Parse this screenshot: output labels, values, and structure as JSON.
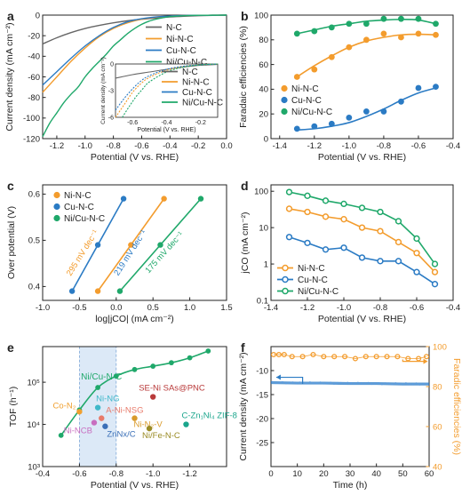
{
  "colors": {
    "NiNC": "#f39c2d",
    "CuNC": "#2b7bc4",
    "NiCuNC": "#1fa86a",
    "NC": "#666666",
    "SE": "#b93a3a",
    "CZn": "#1aa58c",
    "NiFe": "#9a8b25",
    "ANi": "#e87a6a",
    "Zn": "#3a6fb7",
    "NiNCB": "#c86fc0",
    "NiNG": "#3fb8c9",
    "CoN": "#f0a030",
    "NiN2V": "#d99a2a",
    "shade": "#dce9f7"
  },
  "chart_data": [
    {
      "panel": "a",
      "type": "line",
      "xlabel": "Potential (V vs. RHE)",
      "ylabel": "Current density (mA cm⁻²)",
      "xlim": [
        -1.3,
        0.0
      ],
      "ylim": [
        -120,
        0
      ],
      "xticks": [
        -1.2,
        -1.0,
        -0.8,
        -0.6,
        -0.4,
        -0.2,
        0.0
      ],
      "xtick_labels": [
        "-1.2",
        "-1.0",
        "-0.8",
        "-0.6",
        "-0.4",
        "-0.2",
        "0.0"
      ],
      "yticks": [
        -120,
        -100,
        -80,
        -60,
        -40,
        -20,
        0
      ],
      "ytick_labels": [
        "-120",
        "-100",
        "-80",
        "-60",
        "-40",
        "-20",
        "0"
      ],
      "legend": [
        "N-C",
        "Ni-N-C",
        "Cu-N-C",
        "Ni/Cu-N-C"
      ],
      "series": [
        {
          "name": "N-C",
          "x": [
            -1.3,
            -1.2,
            -1.1,
            -1.0,
            -0.9,
            -0.8,
            -0.7,
            -0.6,
            -0.5,
            -0.4,
            -0.3,
            -0.2,
            -0.1,
            0.0
          ],
          "y": [
            -28,
            -22,
            -17,
            -13,
            -10,
            -7.5,
            -5.5,
            -4,
            -2.8,
            -1.8,
            -1.1,
            -0.6,
            -0.3,
            0
          ]
        },
        {
          "name": "Ni-N-C",
          "x": [
            -1.3,
            -1.2,
            -1.1,
            -1.0,
            -0.9,
            -0.8,
            -0.7,
            -0.6,
            -0.5,
            -0.4,
            -0.3,
            -0.2,
            -0.1,
            0.0
          ],
          "y": [
            -75,
            -60,
            -45,
            -32,
            -21,
            -13,
            -7.5,
            -4,
            -2,
            -1,
            -0.5,
            -0.2,
            -0.1,
            0
          ]
        },
        {
          "name": "Cu-N-C",
          "x": [
            -1.3,
            -1.2,
            -1.1,
            -1.0,
            -0.9,
            -0.8,
            -0.7,
            -0.6,
            -0.5,
            -0.4,
            -0.3,
            -0.2,
            -0.1,
            0.0
          ],
          "y": [
            -68,
            -55,
            -42,
            -30,
            -20,
            -12,
            -6.5,
            -3.5,
            -1.8,
            -0.9,
            -0.4,
            -0.2,
            -0.1,
            0
          ]
        },
        {
          "name": "Ni/Cu-N-C",
          "x": [
            -1.3,
            -1.25,
            -1.2,
            -1.15,
            -1.1,
            -1.05,
            -1.0,
            -0.95,
            -0.9,
            -0.85,
            -0.8,
            -0.75,
            -0.7,
            -0.65,
            -0.6,
            -0.55,
            -0.5,
            -0.45,
            -0.4,
            -0.3,
            -0.2,
            -0.1,
            0.0
          ],
          "y": [
            -118,
            -105,
            -95,
            -85,
            -77,
            -70,
            -60,
            -52,
            -45,
            -38,
            -30,
            -24,
            -18,
            -13,
            -9,
            -6,
            -4,
            -2.5,
            -1.5,
            -0.6,
            -0.2,
            -0.1,
            0
          ]
        }
      ],
      "inset": {
        "xlabel": "Potential (V vs. RHE)",
        "ylabel": "Current density (mA cm⁻²)",
        "xlim": [
          -0.7,
          -0.1
        ],
        "ylim": [
          -6,
          0
        ],
        "xtick_labels": [
          "-0.6",
          "-0.4",
          "-0.2"
        ],
        "ytick_labels": [
          "-6",
          "-3",
          "0"
        ],
        "series": [
          {
            "name": "N-C",
            "x": [
              -0.7,
              -0.6,
              -0.5,
              -0.4,
              -0.3,
              -0.2,
              -0.1
            ],
            "y": [
              -1.6,
              -1.2,
              -0.9,
              -0.6,
              -0.35,
              -0.15,
              -0.05
            ]
          },
          {
            "name": "Ni-N-C",
            "x": [
              -0.7,
              -0.65,
              -0.6,
              -0.55,
              -0.5,
              -0.4,
              -0.3,
              -0.2,
              -0.1
            ],
            "y": [
              -6,
              -4.6,
              -3.2,
              -2.2,
              -1.5,
              -0.7,
              -0.3,
              -0.1,
              0
            ]
          },
          {
            "name": "Cu-N-C",
            "x": [
              -0.7,
              -0.65,
              -0.6,
              -0.55,
              -0.5,
              -0.4,
              -0.3,
              -0.2,
              -0.1
            ],
            "y": [
              -5.2,
              -3.9,
              -2.8,
              -1.9,
              -1.3,
              -0.6,
              -0.25,
              -0.1,
              0
            ]
          },
          {
            "name": "Ni/Cu-N-C",
            "x": [
              -0.66,
              -0.62,
              -0.58,
              -0.54,
              -0.5,
              -0.4,
              -0.3,
              -0.2,
              -0.1
            ],
            "y": [
              -6,
              -4.8,
              -3.7,
              -2.8,
              -2.0,
              -0.9,
              -0.35,
              -0.1,
              0
            ]
          }
        ]
      }
    },
    {
      "panel": "b",
      "type": "scatter",
      "xlabel": "Potential (V vs. RHE)",
      "ylabel": "Faradaic efficiencies (%)",
      "xlim": [
        -1.45,
        -0.4
      ],
      "ylim": [
        0,
        100
      ],
      "xticks": [
        -1.4,
        -1.2,
        -1.0,
        -0.8,
        -0.6,
        -0.4
      ],
      "xtick_labels": [
        "-1.4",
        "-1.2",
        "-1.0",
        "-0.8",
        "-0.6",
        "-0.4"
      ],
      "yticks": [
        0,
        20,
        40,
        60,
        80,
        100
      ],
      "ytick_labels": [
        "0",
        "20",
        "40",
        "60",
        "80",
        "100"
      ],
      "legend": [
        "Ni-N-C",
        "Cu-N-C",
        "Ni/Cu-N-C"
      ],
      "series": [
        {
          "name": "Ni-N-C",
          "x": [
            -1.3,
            -1.2,
            -1.1,
            -1.0,
            -0.9,
            -0.8,
            -0.7,
            -0.6,
            -0.5
          ],
          "y": [
            50,
            56,
            66,
            74,
            80,
            85,
            82,
            85,
            84
          ],
          "fit": [
            50,
            59,
            67,
            74,
            79,
            82,
            84,
            84.5,
            84
          ]
        },
        {
          "name": "Cu-N-C",
          "x": [
            -1.3,
            -1.2,
            -1.1,
            -1.0,
            -0.9,
            -0.8,
            -0.7,
            -0.6,
            -0.5
          ],
          "y": [
            8,
            10,
            12,
            17,
            22,
            22,
            30,
            41,
            42
          ],
          "fit": [
            7,
            8,
            10,
            13,
            18,
            24,
            31,
            37,
            41
          ]
        },
        {
          "name": "Ni/Cu-N-C",
          "x": [
            -1.3,
            -1.2,
            -1.1,
            -1.0,
            -0.9,
            -0.8,
            -0.7,
            -0.6,
            -0.5
          ],
          "y": [
            85,
            87,
            90,
            93,
            93,
            97,
            97,
            97,
            93
          ],
          "fit": [
            85,
            88,
            91,
            93,
            95,
            96,
            96.5,
            96,
            93
          ]
        }
      ]
    },
    {
      "panel": "c",
      "type": "scatter",
      "xlabel": "log|jCO| (mA cm⁻²)",
      "ylabel": "Over potential (V)",
      "xlim": [
        -1.0,
        1.5
      ],
      "ylim": [
        0.37,
        0.62
      ],
      "xticks": [
        -1.0,
        -0.5,
        0.0,
        0.5,
        1.0,
        1.5
      ],
      "xtick_labels": [
        "-1.0",
        "-0.5",
        "0.0",
        "0.5",
        "1.0",
        "1.5"
      ],
      "yticks": [
        0.4,
        0.5,
        0.6
      ],
      "ytick_labels": [
        "0.4",
        "0.5",
        "0.6"
      ],
      "legend": [
        "Ni-N-C",
        "Cu-N-C",
        "Ni/Cu-N-C"
      ],
      "annotations": [
        "295 mV dec⁻¹",
        "219 mV dec⁻¹",
        "175 mV dec⁻¹"
      ],
      "series": [
        {
          "name": "Ni-N-C",
          "x": [
            -0.25,
            0.2,
            0.65
          ],
          "y": [
            0.39,
            0.49,
            0.59
          ]
        },
        {
          "name": "Cu-N-C",
          "x": [
            -0.6,
            -0.25,
            0.1
          ],
          "y": [
            0.39,
            0.49,
            0.59
          ]
        },
        {
          "name": "Ni/Cu-N-C",
          "x": [
            0.05,
            0.6,
            1.15
          ],
          "y": [
            0.39,
            0.49,
            0.59
          ]
        }
      ]
    },
    {
      "panel": "d",
      "type": "line",
      "xlabel": "Potential (V vs. RHE)",
      "ylabel": "jCO (mA cm⁻²)",
      "yscale": "log",
      "xlim": [
        -1.4,
        -0.4
      ],
      "ylim": [
        0.1,
        150
      ],
      "xticks": [
        -1.4,
        -1.2,
        -1.0,
        -0.8,
        -0.6,
        -0.4
      ],
      "xtick_labels": [
        "-1.4",
        "-1.2",
        "-1.0",
        "-0.8",
        "-0.6",
        "-0.4"
      ],
      "yticks": [
        0.1,
        1,
        10,
        100
      ],
      "ytick_labels": [
        "0.1",
        "1",
        "10",
        "100"
      ],
      "legend": [
        "Ni-N-C",
        "Cu-N-C",
        "Ni/Cu-N-C"
      ],
      "series": [
        {
          "name": "Ni-N-C",
          "x": [
            -1.3,
            -1.2,
            -1.1,
            -1.0,
            -0.9,
            -0.8,
            -0.7,
            -0.6,
            -0.5
          ],
          "y": [
            33,
            27,
            20,
            17,
            10,
            8,
            4,
            2,
            0.6
          ]
        },
        {
          "name": "Cu-N-C",
          "x": [
            -1.3,
            -1.2,
            -1.1,
            -1.0,
            -0.9,
            -0.8,
            -0.7,
            -0.6,
            -0.5
          ],
          "y": [
            5.5,
            3.8,
            2.5,
            2.8,
            1.5,
            1.2,
            1.2,
            0.6,
            0.28
          ]
        },
        {
          "name": "Ni/Cu-N-C",
          "x": [
            -1.3,
            -1.2,
            -1.1,
            -1.0,
            -0.9,
            -0.8,
            -0.7,
            -0.6,
            -0.5
          ],
          "y": [
            95,
            75,
            55,
            45,
            35,
            27,
            15,
            5,
            1
          ]
        }
      ]
    },
    {
      "panel": "e",
      "type": "scatter",
      "xlabel": "Potential (V vs. RHE)",
      "ylabel": "TOF (h⁻¹)",
      "yscale": "log",
      "xlim": [
        -0.4,
        -1.4
      ],
      "ylim": [
        1000,
        700000
      ],
      "xticks": [
        -0.4,
        -0.6,
        -0.8,
        -1.0,
        -1.2
      ],
      "xtick_labels": [
        "-0.4",
        "-0.6",
        "-0.8",
        "-1.0",
        "-1.2"
      ],
      "yticks": [
        1000,
        10000,
        100000
      ],
      "ytick_labels": [
        "10³",
        "10⁴",
        "10⁵"
      ],
      "shaded_x": [
        -0.6,
        -0.8
      ],
      "series": [
        {
          "name": "Ni/Cu-N-C",
          "x": [
            -0.5,
            -0.6,
            -0.7,
            -0.8,
            -0.9,
            -1.0,
            -1.1,
            -1.2,
            -1.3
          ],
          "y": [
            5500,
            22000,
            75000,
            140000,
            200000,
            240000,
            290000,
            380000,
            550000
          ]
        }
      ],
      "references": [
        {
          "label": "Co-N₂",
          "x": -0.6,
          "y": 20000
        },
        {
          "label": "Ni-NCB",
          "x": -0.68,
          "y": 11000
        },
        {
          "label": "Ni-NG",
          "x": -0.7,
          "y": 25000
        },
        {
          "label": "A-Ni-NSG",
          "x": -0.72,
          "y": 14000
        },
        {
          "label": "ZnNx/C",
          "x": -0.74,
          "y": 9000
        },
        {
          "label": "Ni-N₂-V",
          "x": -0.9,
          "y": 14000
        },
        {
          "label": "SE-Ni SAs@PNC",
          "x": -1.0,
          "y": 45000
        },
        {
          "label": "Ni/Fe-N-C",
          "x": -0.98,
          "y": 8000
        },
        {
          "label": "C-Zn₁Ni₄ ZIF-8",
          "x": -1.18,
          "y": 10000
        }
      ]
    },
    {
      "panel": "f",
      "type": "line",
      "xlabel": "Time (h)",
      "ylabel": "Current density (mA cm⁻²)",
      "ylabel_right": "Faradic efficiencies (%)",
      "xlim": [
        0,
        60
      ],
      "ylim": [
        -30,
        -5
      ],
      "ylim_right": [
        40,
        100
      ],
      "xticks": [
        0,
        10,
        20,
        30,
        40,
        50,
        60
      ],
      "xtick_labels": [
        "0",
        "10",
        "20",
        "30",
        "40",
        "50",
        "60"
      ],
      "yticks": [
        -25,
        -20,
        -15,
        -10
      ],
      "ytick_labels": [
        "-25",
        "-20",
        "-15",
        "-10"
      ],
      "yticks_right": [
        40,
        60,
        80,
        100
      ],
      "ytick_labels_right": [
        "40",
        "60",
        "80",
        "100"
      ],
      "series": [
        {
          "name": "Current density",
          "x": [
            0,
            10,
            20,
            30,
            40,
            50,
            60
          ],
          "y": [
            -12.5,
            -12.6,
            -12.6,
            -12.7,
            -12.7,
            -12.8,
            -12.8
          ]
        },
        {
          "name": "Faradic efficiencies",
          "axis": "right",
          "x": [
            1,
            3,
            5,
            8,
            12,
            16,
            20,
            24,
            28,
            32,
            36,
            40,
            44,
            48,
            52,
            56,
            59
          ],
          "y": [
            96,
            96,
            96,
            95,
            95,
            96,
            95,
            95,
            95,
            94,
            95,
            95,
            95,
            95,
            94,
            94,
            95
          ]
        }
      ]
    }
  ]
}
